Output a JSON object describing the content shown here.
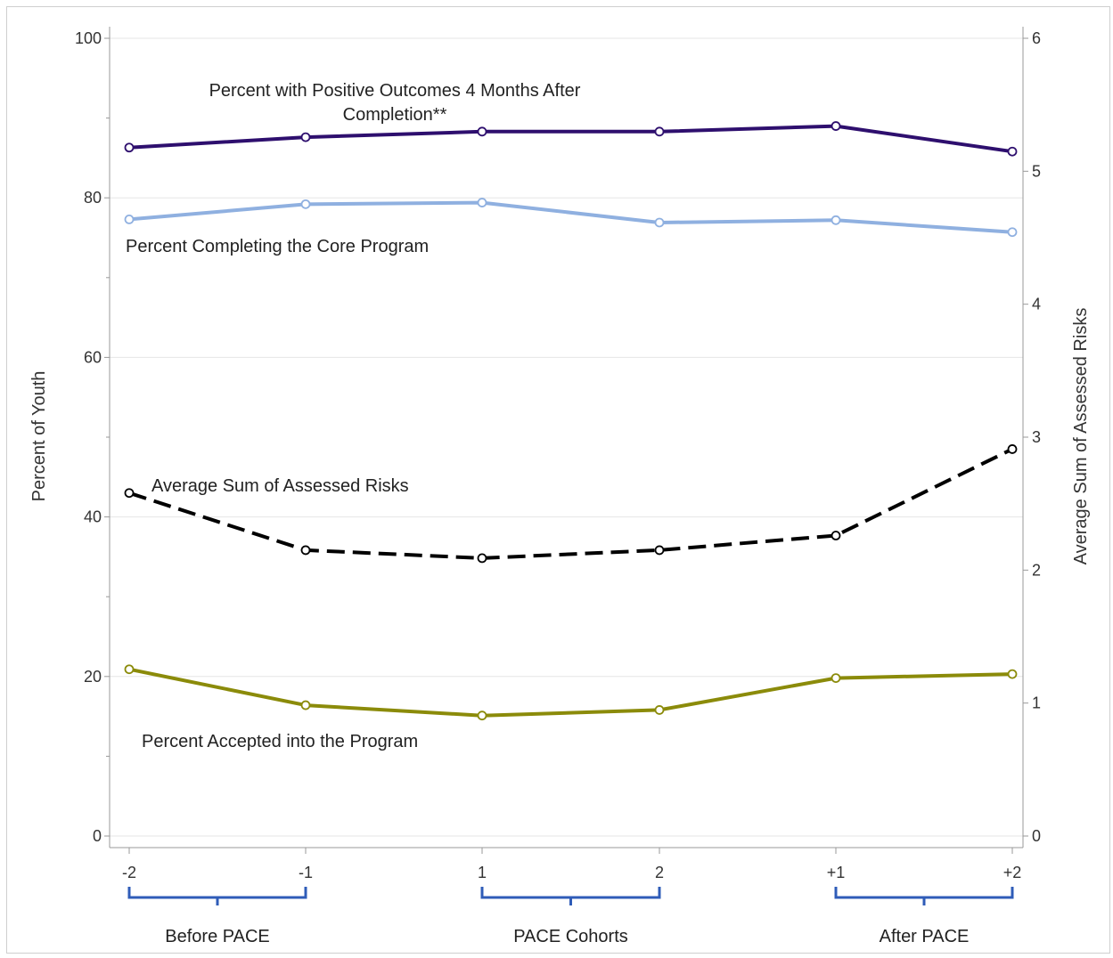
{
  "chart_data": {
    "type": "line",
    "title": "",
    "categories": [
      "-2",
      "-1",
      "1",
      "2",
      "+1",
      "+2"
    ],
    "ylabel": "Percent of Youth",
    "y2label": "Average Sum of Assessed Risks",
    "ylim": [
      0,
      100
    ],
    "y2lim": [
      0,
      6
    ],
    "yticks": [
      0,
      20,
      40,
      60,
      80,
      100
    ],
    "y2ticks": [
      0,
      1,
      2,
      3,
      4,
      5,
      6
    ],
    "grid": true,
    "legend": "none",
    "series": [
      {
        "key": "positive",
        "name": "Percent with Positive Outcomes 4 Months After Completion**",
        "label_lines": [
          "Percent with Positive Outcomes 4 Months After",
          "Completion**"
        ],
        "axis": "left",
        "values": [
          86.3,
          87.6,
          88.3,
          88.3,
          89.0,
          85.8
        ],
        "color": "#2e0f6e",
        "dash": "solid"
      },
      {
        "key": "completing",
        "name": "Percent Completing the Core Program",
        "label_lines": [
          "Percent Completing the Core Program"
        ],
        "axis": "left",
        "values": [
          77.3,
          79.2,
          79.4,
          76.9,
          77.2,
          75.7
        ],
        "color": "#8fb0e0",
        "dash": "solid"
      },
      {
        "key": "risks",
        "name": "Average Sum of Assessed Risks",
        "label_lines": [
          "Average Sum of Assessed Risks"
        ],
        "axis": "right",
        "values": [
          2.58,
          2.15,
          2.09,
          2.15,
          2.26,
          2.91
        ],
        "color": "#000000",
        "dash": "dashed"
      },
      {
        "key": "accepted",
        "name": "Percent Accepted into the Program",
        "label_lines": [
          "Percent Accepted into the Program"
        ],
        "axis": "left",
        "values": [
          20.9,
          16.4,
          15.1,
          15.8,
          19.8,
          20.3
        ],
        "color": "#8b8b0a",
        "dash": "solid"
      }
    ],
    "groups": [
      {
        "label": "Before PACE",
        "from": 0,
        "to": 1
      },
      {
        "label": "PACE Cohorts",
        "from": 2,
        "to": 3
      },
      {
        "label": "After PACE",
        "from": 4,
        "to": 5
      }
    ],
    "colors": {
      "bracket": "#2f5cb8",
      "grid": "#e6e6e6",
      "axis": "#999999"
    }
  }
}
